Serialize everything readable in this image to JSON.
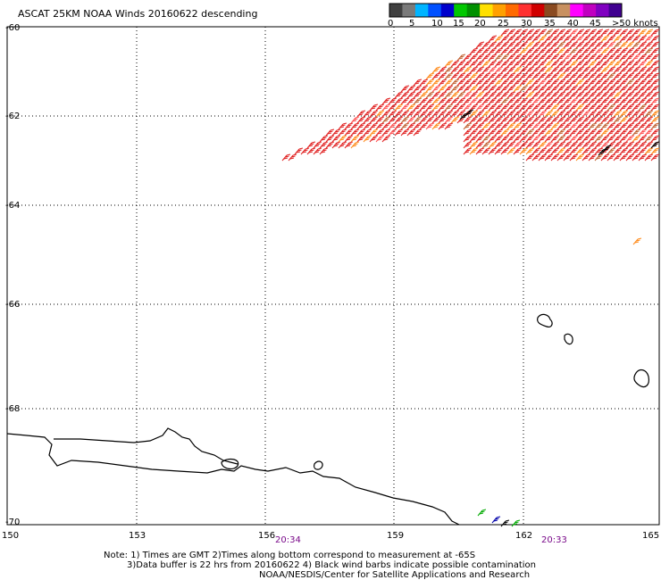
{
  "title": "ASCAT 25KM NOAA Winds 20160622 descending",
  "colorbar": {
    "colors": [
      "#404040",
      "#7a7a7a",
      "#00b4ff",
      "#0050ff",
      "#0000cc",
      "#00c800",
      "#009000",
      "#ffe000",
      "#ffa000",
      "#ff6a00",
      "#ff3030",
      "#d00000",
      "#8a4a20",
      "#c89060",
      "#ff00ff",
      "#c000c0",
      "#8000c0",
      "#400090"
    ],
    "labels": [
      "0",
      "5",
      "10",
      "15",
      "20",
      "25",
      "30",
      "35",
      "40",
      "45",
      ">50 knots"
    ]
  },
  "axes": {
    "lat_labels": [
      "-60",
      "-62",
      "-64",
      "-66",
      "-68",
      "-70"
    ],
    "lon_labels": [
      "150",
      "153",
      "156",
      "159",
      "162",
      "165"
    ]
  },
  "times": [
    "20:34",
    "20:33"
  ],
  "notes": [
    "Note: 1) Times are GMT 2)Times along bottom correspond to measurement at -65S",
    "3)Data buffer is 22 hrs from 20160622 4) Black wind barbs indicate possible contamination",
    "NOAA/NESDIS/Center for Satellite Applications and Research"
  ]
}
